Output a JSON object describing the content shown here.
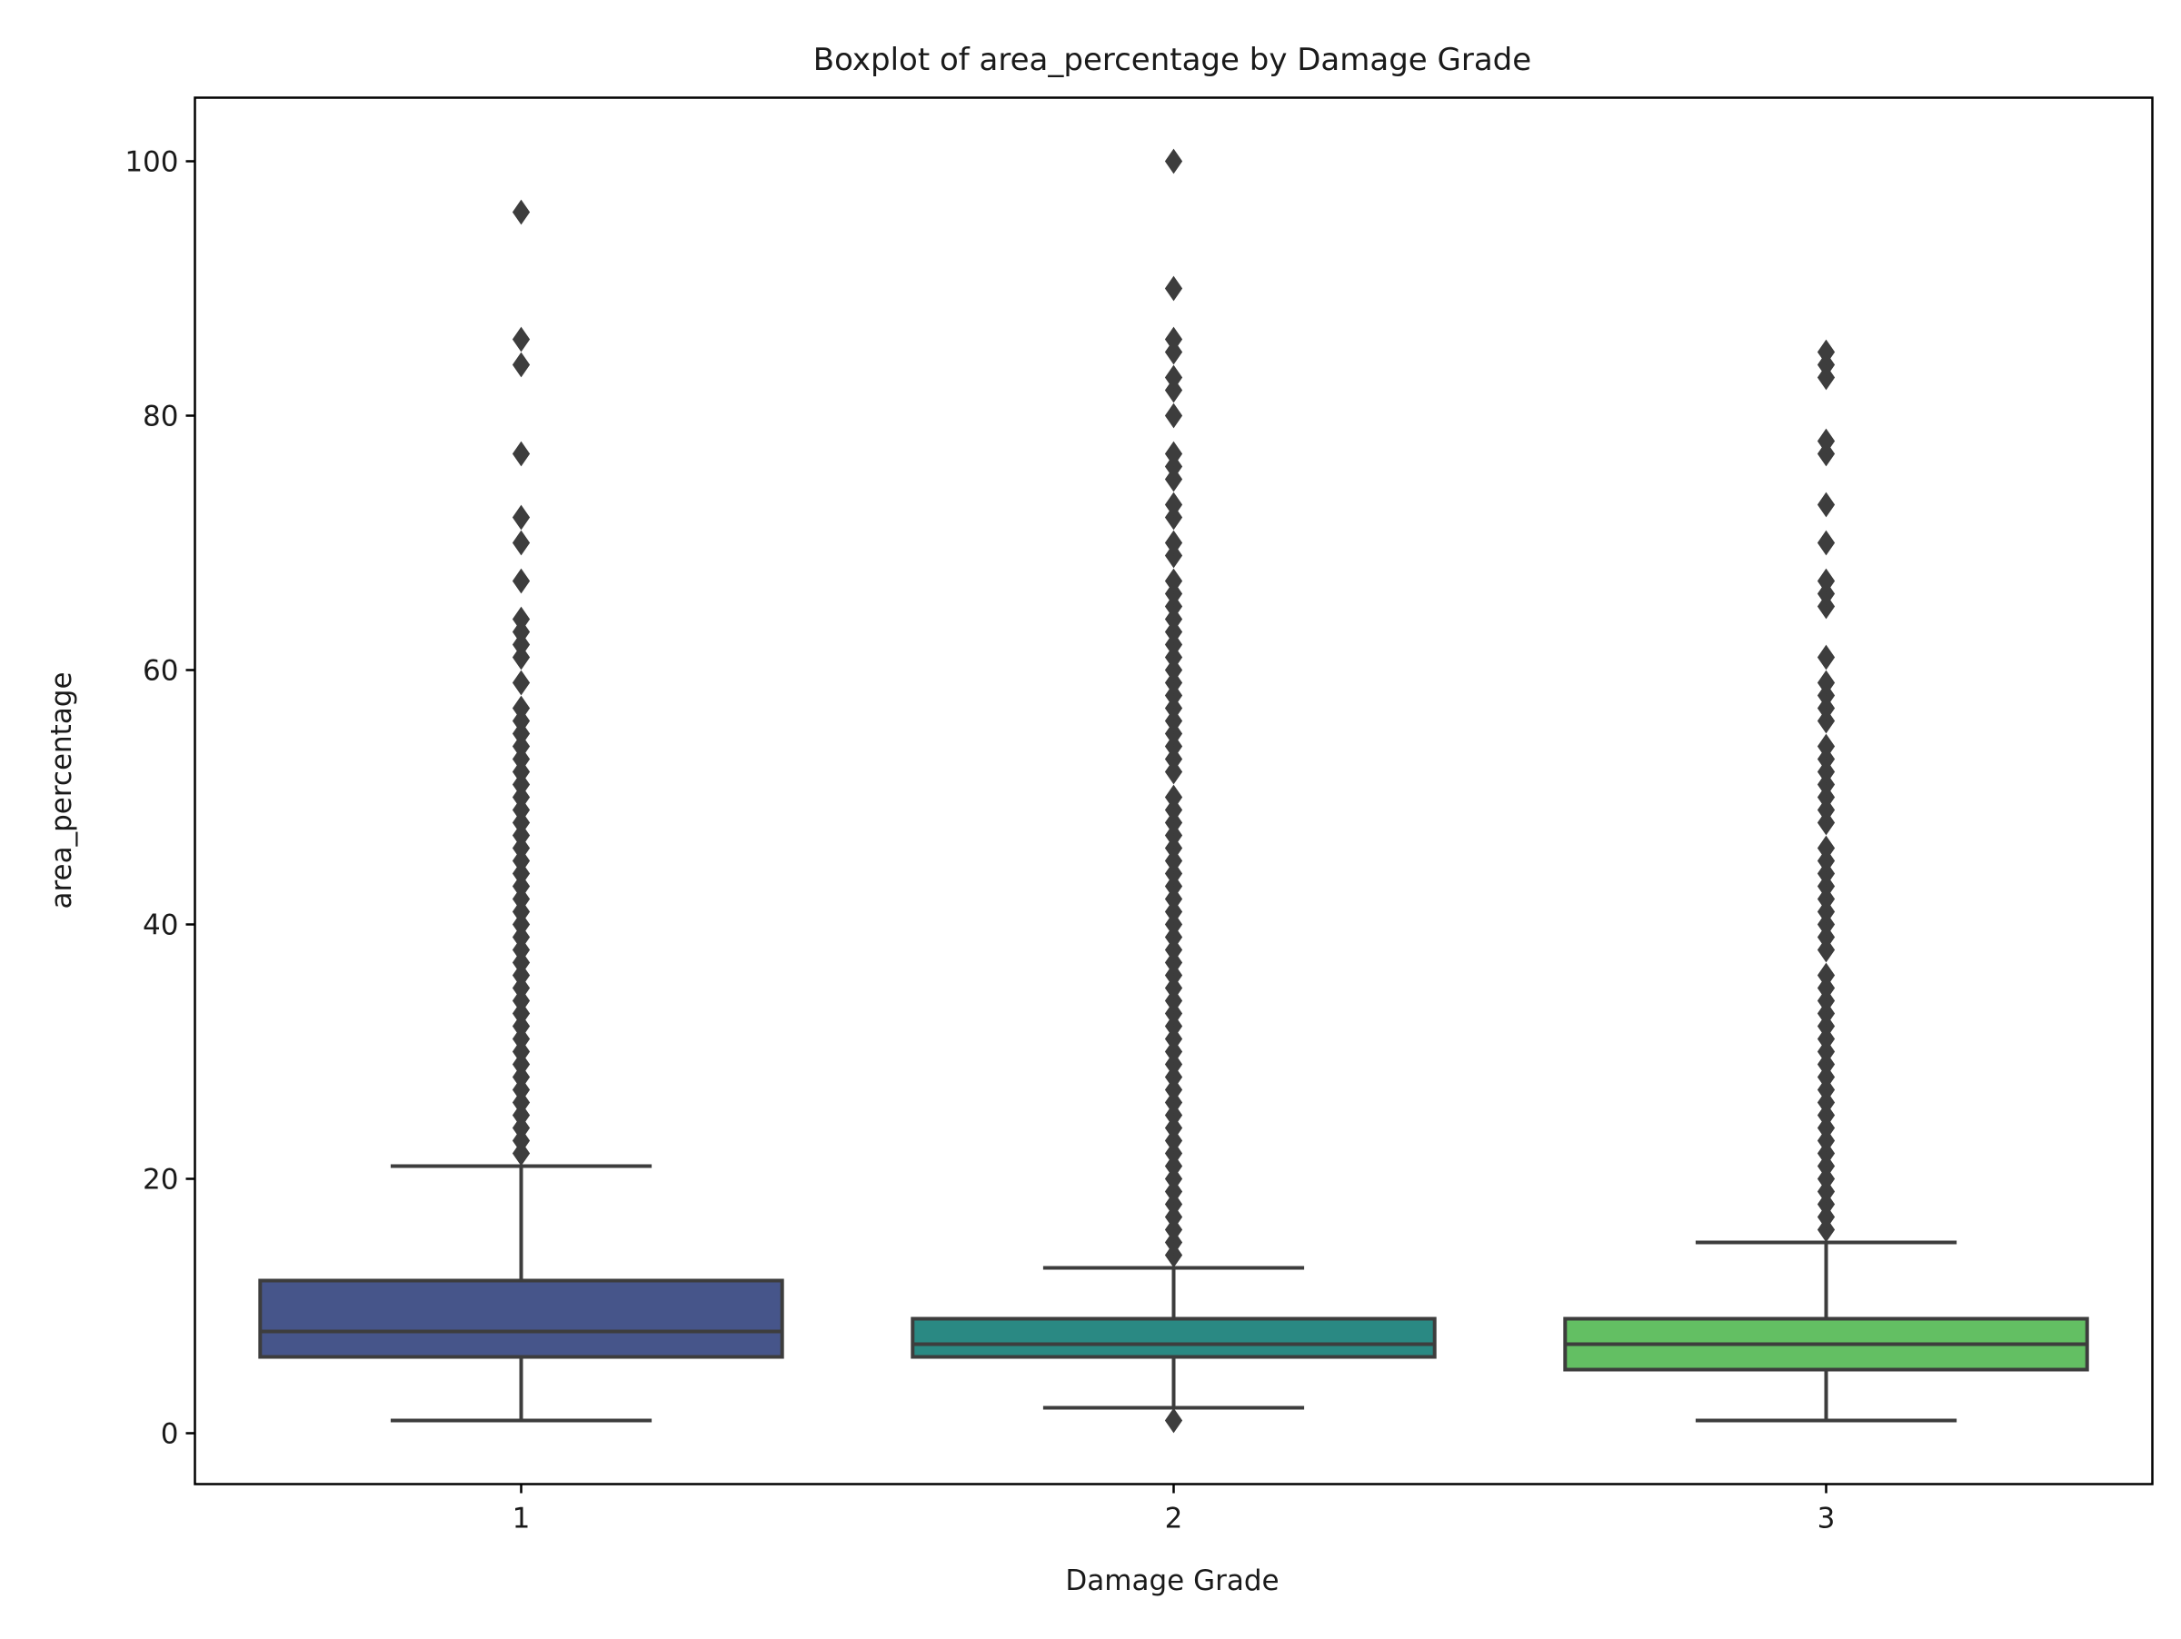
{
  "chart_data": {
    "type": "box",
    "title": "Boxplot of area_percentage by Damage Grade",
    "xlabel": "Damage Grade",
    "ylabel": "area_percentage",
    "ylim": [
      -4,
      105
    ],
    "yticks": [
      0,
      20,
      40,
      60,
      80,
      100
    ],
    "categories": [
      "1",
      "2",
      "3"
    ],
    "grid": false,
    "legend": "none",
    "boxes": [
      {
        "category": "1",
        "color": "#46558a",
        "whisker_low": 1,
        "q1": 6,
        "median": 8,
        "q3": 12,
        "whisker_high": 21,
        "outliers": [
          22,
          23,
          24,
          25,
          26,
          27,
          28,
          29,
          30,
          31,
          32,
          33,
          34,
          35,
          36,
          37,
          38,
          39,
          40,
          41,
          42,
          43,
          44,
          45,
          46,
          47,
          48,
          49,
          50,
          51,
          52,
          53,
          54,
          55,
          56,
          57,
          59,
          61,
          62,
          63,
          64,
          67,
          70,
          72,
          77,
          84,
          86,
          96
        ]
      },
      {
        "category": "2",
        "color": "#2a8983",
        "whisker_low": 2,
        "q1": 6,
        "median": 7,
        "q3": 9,
        "whisker_high": 13,
        "outliers": [
          1,
          14,
          15,
          16,
          17,
          18,
          19,
          20,
          21,
          22,
          23,
          24,
          25,
          26,
          27,
          28,
          29,
          30,
          31,
          32,
          33,
          34,
          35,
          36,
          37,
          38,
          39,
          40,
          41,
          42,
          43,
          44,
          45,
          46,
          47,
          48,
          49,
          50,
          52,
          53,
          54,
          55,
          56,
          57,
          58,
          59,
          60,
          61,
          62,
          63,
          64,
          65,
          66,
          67,
          69,
          70,
          72,
          73,
          75,
          76,
          77,
          80,
          82,
          83,
          85,
          86,
          90,
          100
        ]
      },
      {
        "category": "3",
        "color": "#63bf63",
        "whisker_low": 1,
        "q1": 5,
        "median": 7,
        "q3": 9,
        "whisker_high": 15,
        "outliers": [
          16,
          17,
          18,
          19,
          20,
          21,
          22,
          23,
          24,
          25,
          26,
          27,
          28,
          29,
          30,
          31,
          32,
          33,
          34,
          35,
          36,
          38,
          39,
          40,
          41,
          42,
          43,
          44,
          45,
          46,
          48,
          49,
          50,
          51,
          52,
          53,
          54,
          56,
          57,
          58,
          59,
          61,
          65,
          66,
          67,
          70,
          73,
          77,
          78,
          83,
          84,
          85
        ]
      }
    ]
  }
}
